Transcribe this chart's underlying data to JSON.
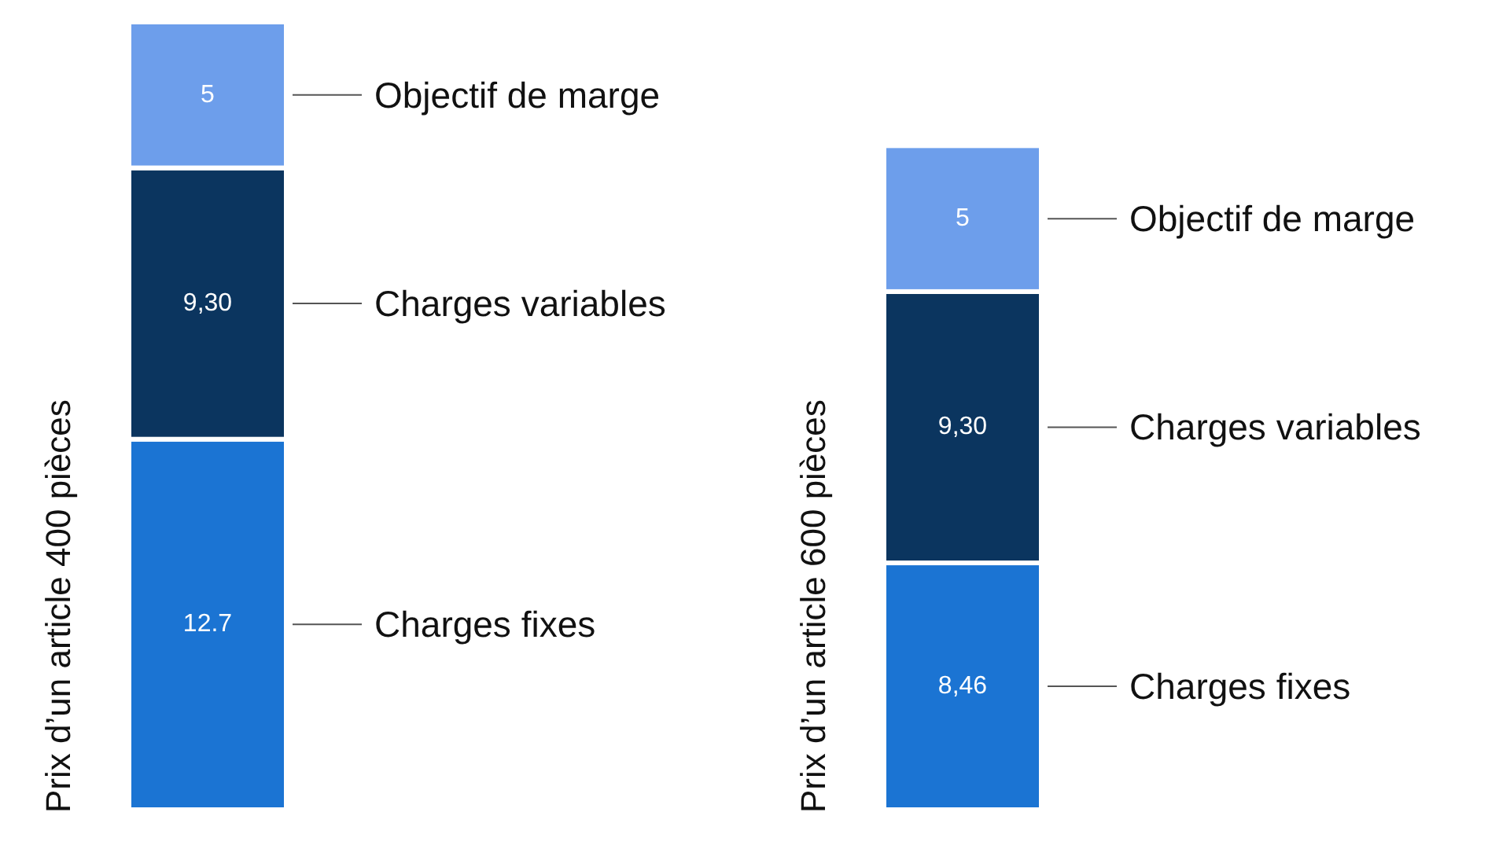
{
  "chart_data": [
    {
      "type": "bar",
      "stacked": true,
      "ylabel": "Prix d’un article 400 pièces",
      "categories": [
        null
      ],
      "series": [
        {
          "name": "Charges fixes",
          "color": "#1b74d3",
          "values": [
            12.7
          ],
          "value_labels": [
            "12.7"
          ]
        },
        {
          "name": "Charges variables",
          "color": "#0b355f",
          "values": [
            9.3
          ],
          "value_labels": [
            "9,30"
          ]
        },
        {
          "name": "Objectif de marge",
          "color": "#6d9eeb",
          "values": [
            5
          ],
          "value_labels": [
            "5"
          ]
        }
      ]
    },
    {
      "type": "bar",
      "stacked": true,
      "ylabel": "Prix d’un article 600 pièces",
      "categories": [
        null
      ],
      "series": [
        {
          "name": "Charges fixes",
          "color": "#1b74d3",
          "values": [
            8.46
          ],
          "value_labels": [
            "8,46"
          ]
        },
        {
          "name": "Charges variables",
          "color": "#0b355f",
          "values": [
            9.3
          ],
          "value_labels": [
            "9,30"
          ]
        },
        {
          "name": "Objectif de marge",
          "color": "#6d9eeb",
          "values": [
            5
          ],
          "value_labels": [
            "5"
          ]
        }
      ]
    }
  ]
}
